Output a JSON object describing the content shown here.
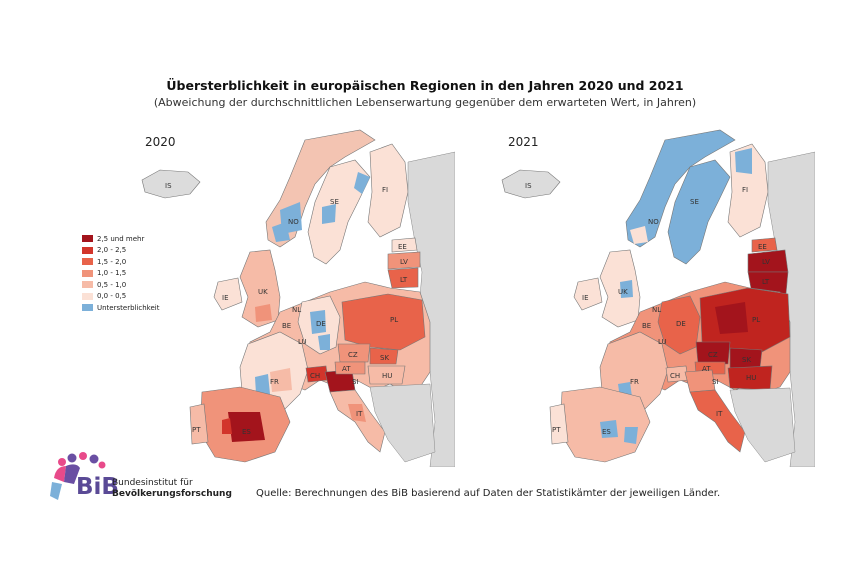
{
  "title": "Übersterblichkeit in europäischen Regionen in den Jahren 2020 und 2021",
  "subtitle": "(Abweichung der durchschnittlichen Lebenserwartung gegenüber dem erwarteten Wert, in Jahren)",
  "maps": [
    {
      "year": "2020",
      "labels": [
        "IS",
        "NO",
        "SE",
        "FI",
        "EE",
        "LV",
        "LT",
        "IE",
        "UK",
        "NL",
        "BE",
        "DE",
        "PL",
        "CZ",
        "SK",
        "FR",
        "LU",
        "CH",
        "AT",
        "HU",
        "SI",
        "IT",
        "ES",
        "PT"
      ]
    },
    {
      "year": "2021",
      "labels": [
        "IS",
        "NO",
        "SE",
        "FI",
        "EE",
        "LV",
        "LT",
        "IE",
        "UK",
        "NL",
        "BE",
        "DE",
        "PL",
        "CZ",
        "SK",
        "FR",
        "LU",
        "CH",
        "AT",
        "HU",
        "SI",
        "IT",
        "ES",
        "PT"
      ]
    }
  ],
  "legend": {
    "items": [
      {
        "label": "2,5 und mehr",
        "color": "#a3141c"
      },
      {
        "label": "2,0 - 2,5",
        "color": "#d2352b"
      },
      {
        "label": "1,5 - 2,0",
        "color": "#e8634a"
      },
      {
        "label": "1,0 - 1,5",
        "color": "#f0937a"
      },
      {
        "label": "0,5 - 1,0",
        "color": "#f6bba7"
      },
      {
        "label": "0,0 - 0,5",
        "color": "#fbe1d6"
      },
      {
        "label": "Untersterblichkeit",
        "color": "#7cb0d9"
      }
    ]
  },
  "source": "Quelle: Berechnungen des BiB basierend auf Daten der Statistikämter der jeweiligen Länder.",
  "logo": {
    "abbr": "BiB",
    "line1": "Bundesinstitut für",
    "line2": "Bevölkerungsforschung"
  },
  "colors": {
    "nodata": "#d9d9d9",
    "border": "#6a6a6a",
    "sea": "#ffffff"
  }
}
